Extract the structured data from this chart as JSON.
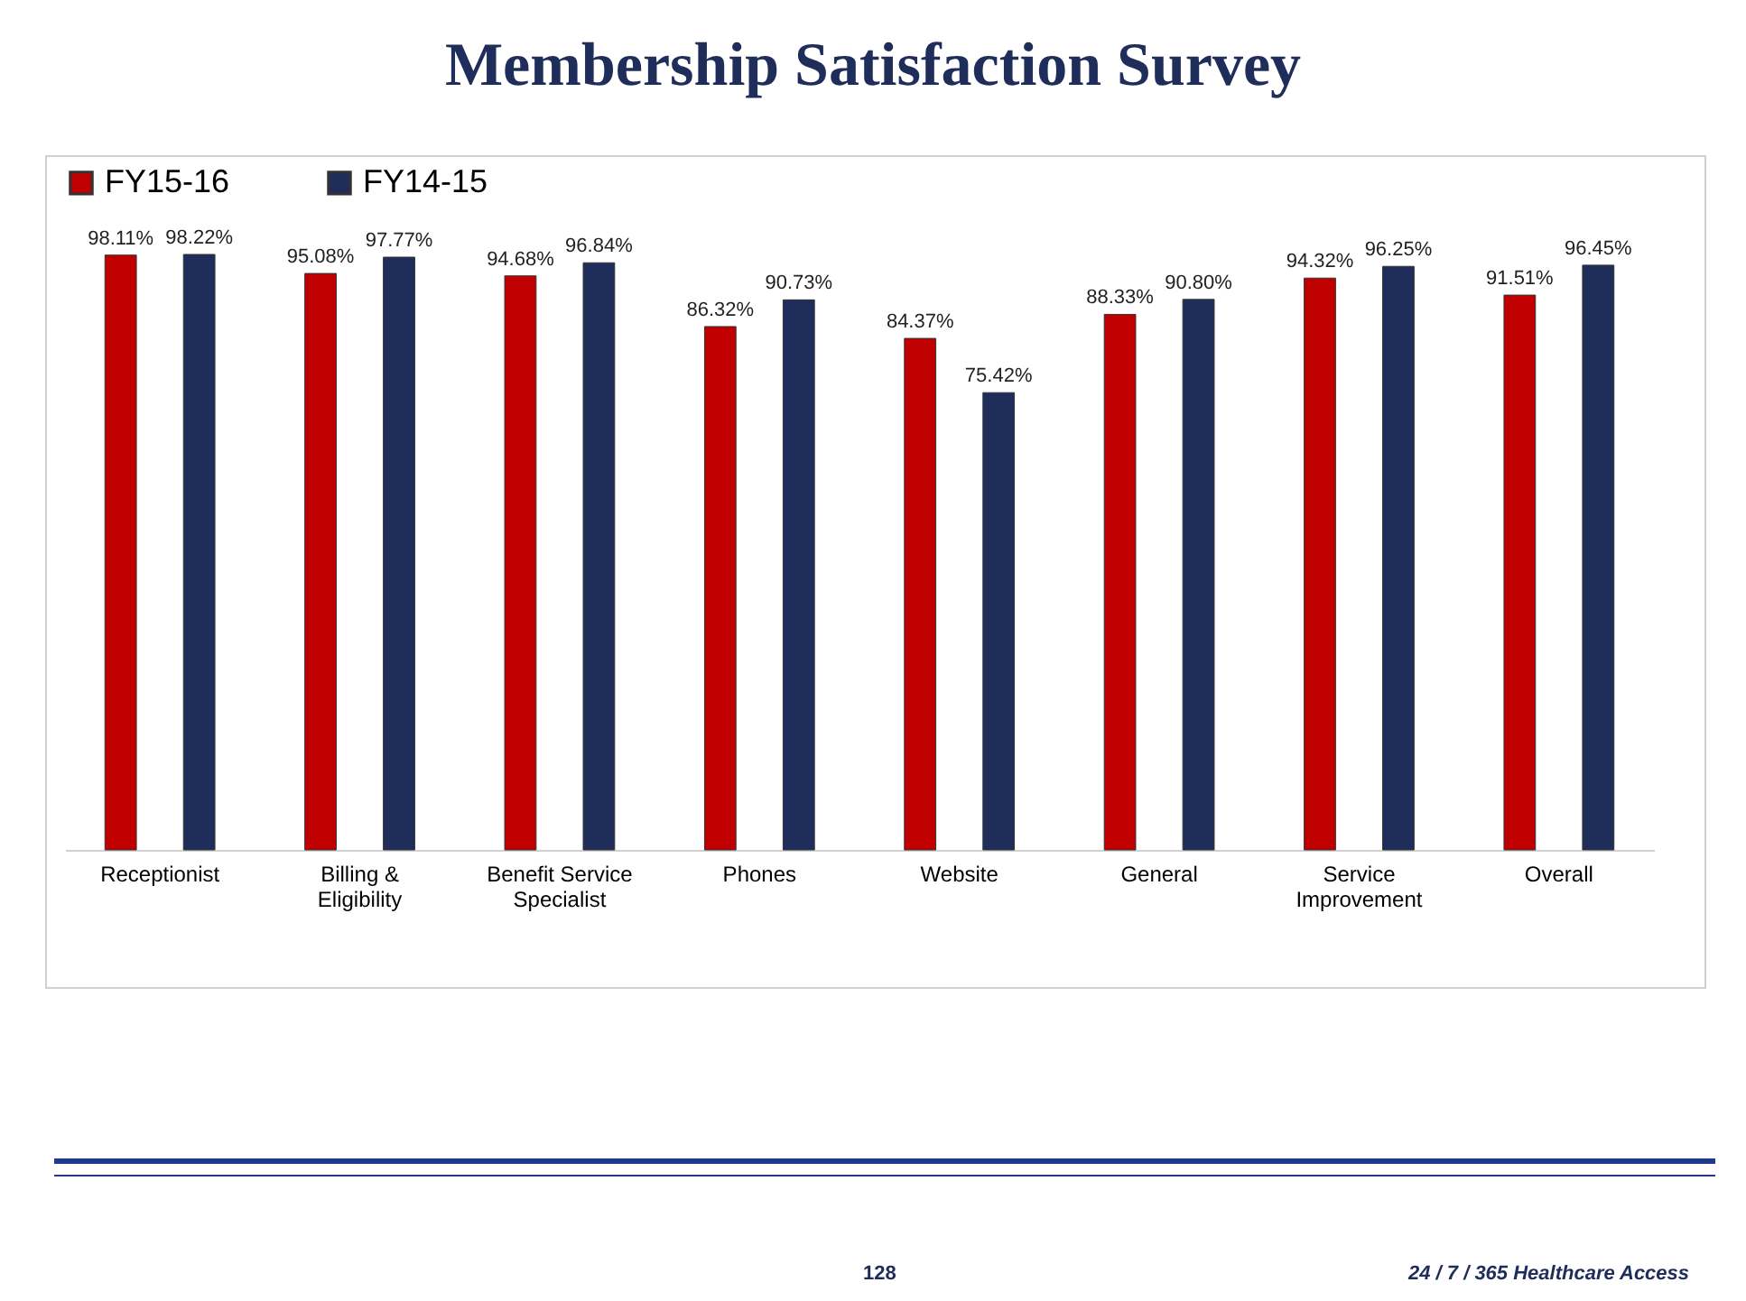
{
  "chart_data": {
    "type": "bar",
    "title": "Membership Satisfaction Survey",
    "categories": [
      "Receptionist",
      "Billing & Eligibility",
      "Benefit Service Specialist",
      "Phones",
      "Website",
      "General",
      "Service Improvement",
      "Overall"
    ],
    "series": [
      {
        "name": "FY15-16",
        "color": "#c00000",
        "values": [
          98.11,
          95.08,
          94.68,
          86.32,
          84.37,
          88.33,
          94.32,
          91.51
        ],
        "value_labels": [
          "98.11%",
          "95.08%",
          "94.68%",
          "86.32%",
          "84.37%",
          "88.33%",
          "94.32%",
          "91.51%"
        ]
      },
      {
        "name": "FY14-15",
        "color": "#1f2d5a",
        "values": [
          98.22,
          97.77,
          96.84,
          90.73,
          75.42,
          90.8,
          96.25,
          96.45
        ],
        "value_labels": [
          "98.22%",
          "97.77%",
          "96.84%",
          "90.73%",
          "75.42%",
          "90.80%",
          "96.25%",
          "96.45%"
        ]
      }
    ],
    "legend": "top",
    "grid": false,
    "annotations": [
      "128",
      "24 / 7 / 365 Healthcare Access"
    ]
  }
}
